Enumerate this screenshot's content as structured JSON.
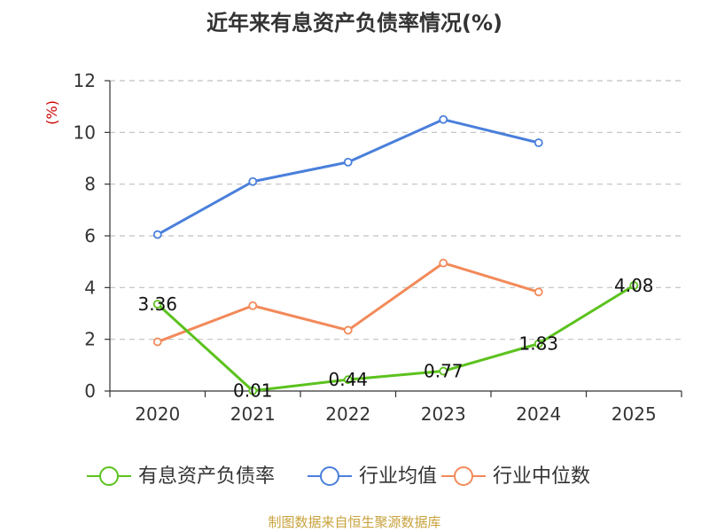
{
  "title": "近年来有息资产负债率情况(%)",
  "source_note": "制图数据来自恒生聚源数据库",
  "colors": {
    "有息资产负债率": "#5cc21e",
    "行业均值": "#4a7fdb",
    "行业中位数": "#f28a5a",
    "grid": "#c0c0c0",
    "unit": "#cc0000",
    "footer": "#c8a23c"
  },
  "chart_data": {
    "type": "line",
    "title": "近年来有息资产负债率情况(%)",
    "ylabel": "(%)",
    "ylim": [
      0,
      12
    ],
    "yticks": [
      "0",
      "2",
      "4",
      "6",
      "8",
      "10",
      "12"
    ],
    "categories": [
      "2020",
      "2021",
      "2022",
      "2023",
      "2024",
      "2025"
    ],
    "grid": "dashed horizontal",
    "legend_position": "bottom",
    "series": [
      {
        "name": "有息资产负债率",
        "values": [
          3.36,
          0.01,
          0.44,
          0.77,
          1.83,
          4.08
        ],
        "labels": [
          "3.36",
          "0.01",
          "0.44",
          "0.77",
          "1.83",
          "4.08"
        ],
        "marker": "circle"
      },
      {
        "name": "行业均值",
        "values": [
          6.05,
          8.1,
          8.85,
          10.5,
          9.6,
          null
        ],
        "marker": "circle"
      },
      {
        "name": "行业中位数",
        "values": [
          1.9,
          3.3,
          2.35,
          4.95,
          3.83,
          null
        ],
        "marker": "circle"
      }
    ]
  }
}
